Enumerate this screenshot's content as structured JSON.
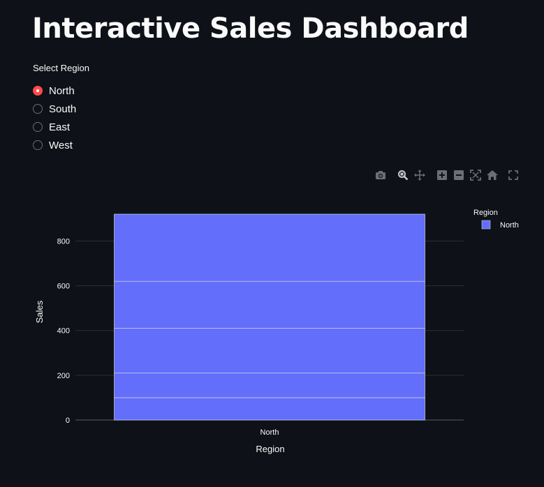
{
  "page": {
    "title": "Interactive Sales Dashboard"
  },
  "region_selector": {
    "label": "Select Region",
    "options": [
      "North",
      "South",
      "East",
      "West"
    ],
    "selected": "North",
    "accent_color": "#ff4b4b"
  },
  "modebar": {
    "icons": [
      "camera-icon",
      "zoom-icon",
      "pan-icon",
      "zoom-in-icon",
      "zoom-out-icon",
      "autoscale-icon",
      "home-icon",
      "fullscreen-icon"
    ]
  },
  "chart_data": {
    "type": "bar",
    "barmode": "stack",
    "categories": [
      "North"
    ],
    "segments": [
      100,
      110,
      200,
      210,
      300
    ],
    "total": 920,
    "color": "#636efa",
    "xlabel": "Region",
    "ylabel": "Sales",
    "ylim": [
      0,
      920
    ],
    "yticks": [
      0,
      200,
      400,
      600,
      800
    ],
    "grid": true,
    "legend": {
      "title": "Region",
      "entries": [
        "North"
      ],
      "placement": "top-right"
    }
  }
}
